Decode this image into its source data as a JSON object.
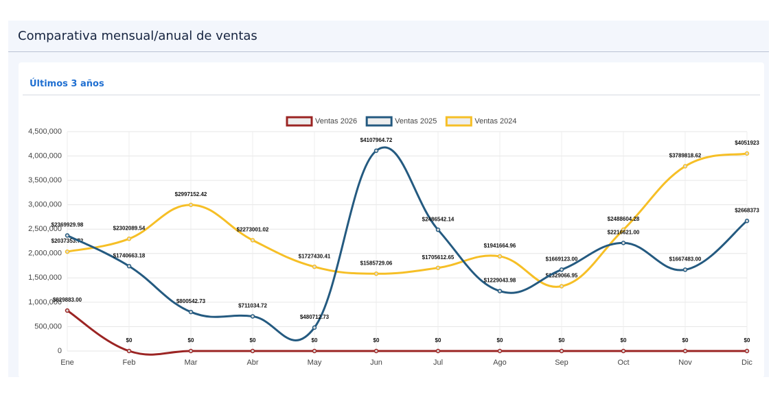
{
  "header": {
    "title": "Comparativa mensual/anual de ventas"
  },
  "card": {
    "title": "Últimos 3 años"
  },
  "chart_data": {
    "type": "line",
    "categories": [
      "Ene",
      "Feb",
      "Mar",
      "Abr",
      "May",
      "Jun",
      "Jul",
      "Ago",
      "Sep",
      "Oct",
      "Nov",
      "Dic"
    ],
    "series": [
      {
        "name": "Ventas 2026",
        "color": "#9b2423",
        "values": [
          829883.0,
          0,
          0,
          0,
          0,
          0,
          0,
          0,
          0,
          0,
          0,
          0
        ],
        "value_labels": [
          "$829883.00",
          "$0",
          "$0",
          "$0",
          "$0",
          "$0",
          "$0",
          "$0",
          "$0",
          "$0",
          "$0",
          "$0"
        ]
      },
      {
        "name": "Ventas 2025",
        "color": "#245a80",
        "values": [
          2369929.98,
          1740663.18,
          800542.73,
          711034.72,
          480712.73,
          4107964.72,
          2486542.14,
          1229043.98,
          1669123.0,
          2216621.0,
          1667483.0,
          2668373
        ],
        "value_labels": [
          "$2369929.98",
          "$1740663.18",
          "$800542.73",
          "$711034.72",
          "$480712.73",
          "$4107964.72",
          "$2486542.14",
          "$1229043.98",
          "$1669123.00",
          "$2216621.00",
          "$1667483.00",
          "$2668373"
        ]
      },
      {
        "name": "Ventas 2024",
        "color": "#f6bf26",
        "values": [
          2037353.72,
          2302089.54,
          2997152.42,
          2273001.02,
          1727430.41,
          1585729.06,
          1705612.65,
          1941664.96,
          1329066.95,
          2488604.28,
          3789818.62,
          4051923
        ],
        "value_labels": [
          "$2037353.72",
          "$2302089.54",
          "$2997152.42",
          "$2273001.02",
          "$1727430.41",
          "$1585729.06",
          "$1705612.65",
          "$1941664.96",
          "$1329066.95",
          "$2488604.28",
          "$3789818.62",
          "$4051923"
        ]
      }
    ],
    "ylim": [
      0,
      4500000
    ],
    "yticks": [
      0,
      {
        "value": 500000,
        "label": "500,000"
      },
      {
        "value": 1000000,
        "label": "1,000,000"
      },
      {
        "value": 1500000,
        "label": "1,500,000"
      },
      {
        "value": 2000000,
        "label": "2,000,000"
      },
      {
        "value": 2500000,
        "label": "2,500,000"
      },
      {
        "value": 3000000,
        "label": "3,000,000"
      },
      {
        "value": 3500000,
        "label": "3,500,000"
      },
      {
        "value": 4000000,
        "label": "4,000,000"
      },
      {
        "value": 4500000,
        "label": "4,500,000"
      }
    ],
    "grid": true,
    "legend": "top"
  }
}
